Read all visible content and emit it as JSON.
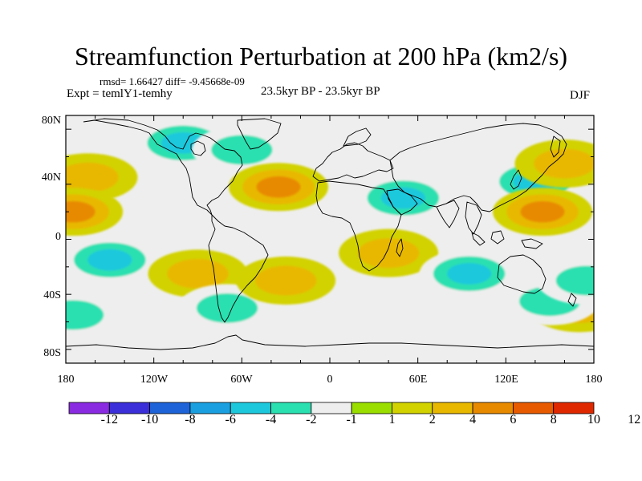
{
  "title": "Streamfunction Perturbation at 200 hPa (km2/s)",
  "stats_line": "rmsd= 1.66427 diff= -9.45668e-09",
  "experiment_label": "Expt = temlY1-temhy",
  "period_label": "23.5kyr BP - 23.5kyr BP",
  "season_label": "DJF",
  "x_ticks": [
    "180",
    "120W",
    "60W",
    "0",
    "60E",
    "120E",
    "180"
  ],
  "y_ticks": [
    "80N",
    "40N",
    "0",
    "40S",
    "80S"
  ],
  "colorbar": {
    "labels": [
      "-12",
      "-10",
      "-8",
      "-6",
      "-4",
      "-2",
      "-1",
      "1",
      "2",
      "4",
      "6",
      "8",
      "10",
      "12"
    ],
    "colors": [
      "#8a2be2",
      "#3a2fd8",
      "#1e63d8",
      "#1aa0e0",
      "#1ec8dc",
      "#2ae0b0",
      "#eeeeee",
      "#9ade00",
      "#d2d200",
      "#e8b800",
      "#e88a00",
      "#e85a00",
      "#e02800"
    ]
  },
  "chart_data": {
    "type": "filled-contour map",
    "variable": "Streamfunction Perturbation at 200 hPa",
    "units": "km2/s",
    "lon_range": [
      -180,
      180
    ],
    "lat_range": [
      -90,
      90
    ],
    "contour_levels": [
      -12,
      -10,
      -8,
      -6,
      -4,
      -2,
      -1,
      1,
      2,
      4,
      6,
      8,
      10,
      12
    ],
    "anomalies": [
      {
        "lon": -165,
        "lat": 45,
        "value": 3.5
      },
      {
        "lon": -175,
        "lat": 20,
        "value": 5
      },
      {
        "lon": -150,
        "lat": -15,
        "value": -5
      },
      {
        "lon": -100,
        "lat": 70,
        "value": -4
      },
      {
        "lon": -60,
        "lat": 65,
        "value": -3
      },
      {
        "lon": -35,
        "lat": 38,
        "value": 4
      },
      {
        "lon": 50,
        "lat": 30,
        "value": -4
      },
      {
        "lon": 140,
        "lat": 42,
        "value": -4
      },
      {
        "lon": 160,
        "lat": 55,
        "value": 3
      },
      {
        "lon": 145,
        "lat": 20,
        "value": 5
      },
      {
        "lon": 40,
        "lat": -10,
        "value": 3
      },
      {
        "lon": 95,
        "lat": -25,
        "value": -4
      },
      {
        "lon": -90,
        "lat": -25,
        "value": 3
      },
      {
        "lon": -70,
        "lat": -50,
        "value": -3
      },
      {
        "lon": -30,
        "lat": -30,
        "value": 2.5
      },
      {
        "lon": 170,
        "lat": -50,
        "value": 2
      },
      {
        "lon": 150,
        "lat": -45,
        "value": -2.5
      },
      {
        "lon": -175,
        "lat": -55,
        "value": -2
      },
      {
        "lon": 175,
        "lat": -30,
        "value": -2.5
      }
    ]
  }
}
